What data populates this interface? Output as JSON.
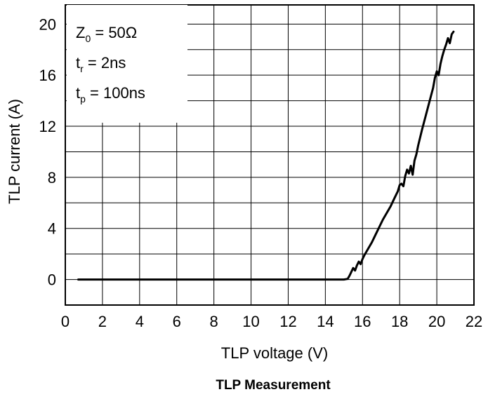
{
  "chart_data": {
    "type": "line",
    "title": "TLP Measurement",
    "xlabel": "TLP voltage (V)",
    "ylabel": "TLP current (A)",
    "xlim": [
      0,
      22
    ],
    "ylim": [
      -2,
      21.5
    ],
    "xticks": [
      0,
      2,
      4,
      6,
      8,
      10,
      12,
      14,
      16,
      18,
      20,
      22
    ],
    "yticks": [
      0,
      4,
      8,
      12,
      16,
      20
    ],
    "grid": true,
    "annotation": {
      "z0_symbol": "Z",
      "z0_sub": "0",
      "z0_value": " = 50Ω",
      "tr_symbol": "t",
      "tr_sub": "r",
      "tr_value": " = 2ns",
      "tp_symbol": "t",
      "tp_sub": "p",
      "tp_value": " = 100ns"
    },
    "series": [
      {
        "x": [
          0.7,
          2,
          4,
          6,
          8,
          10,
          12,
          14,
          15.0,
          15.2,
          15.3,
          15.4,
          15.5,
          15.6,
          15.7,
          15.8,
          15.9,
          16.0,
          16.1,
          16.3,
          16.5,
          16.7,
          16.9,
          17.1,
          17.3,
          17.5,
          17.7,
          17.9,
          18.0,
          18.1,
          18.2,
          18.3,
          18.4,
          18.5,
          18.6,
          18.7,
          18.8,
          18.9,
          19.0,
          19.2,
          19.4,
          19.6,
          19.8,
          19.9,
          20.0,
          20.1,
          20.2,
          20.3,
          20.4,
          20.5,
          20.6,
          20.7,
          20.8,
          20.9
        ],
        "y": [
          0.0,
          0.0,
          0.0,
          0.0,
          0.0,
          0.0,
          0.0,
          0.0,
          0.0,
          0.05,
          0.3,
          0.6,
          0.9,
          0.7,
          1.1,
          1.4,
          1.2,
          1.6,
          1.9,
          2.4,
          2.9,
          3.5,
          4.1,
          4.7,
          5.2,
          5.7,
          6.3,
          6.9,
          7.4,
          7.5,
          7.3,
          8.1,
          8.6,
          8.3,
          8.9,
          8.2,
          9.3,
          9.8,
          10.5,
          11.7,
          12.8,
          13.9,
          15.0,
          15.8,
          16.3,
          16.0,
          16.9,
          17.5,
          18.0,
          18.4,
          18.9,
          18.5,
          19.2,
          19.4
        ]
      }
    ]
  }
}
